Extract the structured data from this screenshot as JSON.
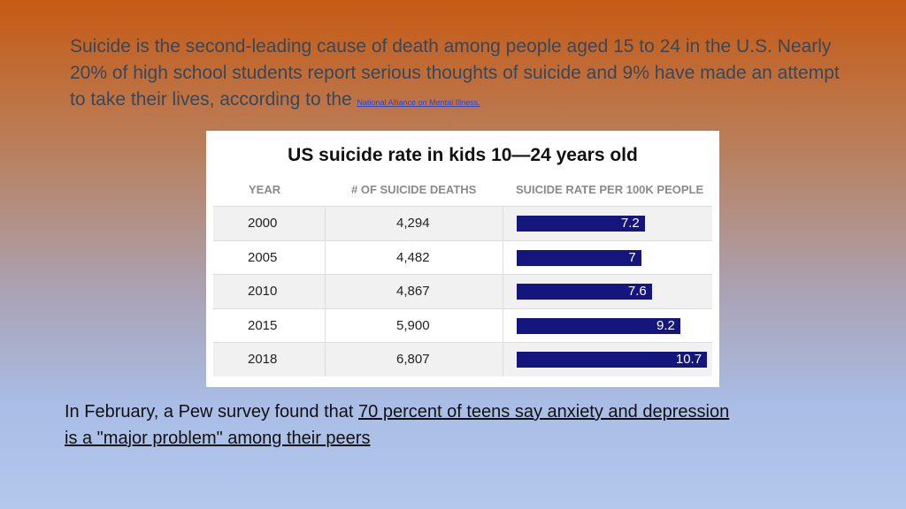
{
  "intro": {
    "text": "Suicide is the second-leading cause of death among people aged 15 to 24 in the U.S. Nearly 20% of high school students report serious thoughts of suicide and 9% have made an attempt to take their lives, according to the",
    "link": "National Alliance on Mental Illness."
  },
  "table": {
    "title": "US suicide rate in kids 10—24 years old",
    "headers": [
      "YEAR",
      "# OF SUICIDE DEATHS",
      "SUICIDE RATE PER 100K PEOPLE"
    ],
    "rows": [
      {
        "year": "2000",
        "deaths": "4,294",
        "rate": 7.2
      },
      {
        "year": "2005",
        "deaths": "4,482",
        "rate": 7
      },
      {
        "year": "2010",
        "deaths": "4,867",
        "rate": 7.6
      },
      {
        "year": "2015",
        "deaths": "5,900",
        "rate": 9.2
      },
      {
        "year": "2018",
        "deaths": "6,807",
        "rate": 10.7
      }
    ]
  },
  "footer": {
    "text": "In February, a Pew survey found that",
    "link": "70 percent of teens say anxiety and depression is a \"major problem\" among their peers"
  }
}
